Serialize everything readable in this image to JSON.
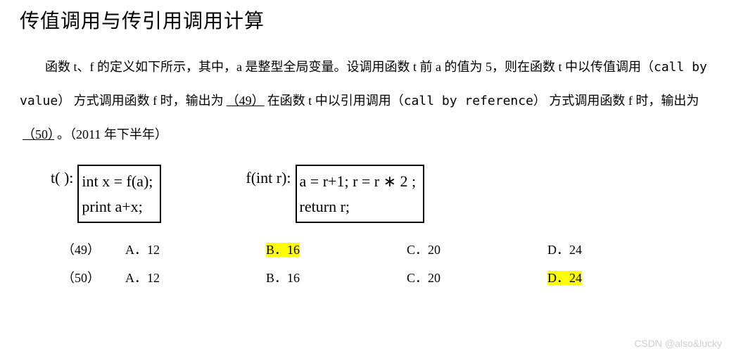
{
  "title": "传值调用与传引用调用计算",
  "paragraph_parts": {
    "p1": "函数 t、f 的定义如下所示，其中，a 是整型全局变量。设调用函数 t 前 a 的值为 5，则在函数 t 中以传值调用（",
    "cbv": "call by value",
    "p2": "） 方式调用函数 f 时，输出为",
    "blank1": "（49）",
    "p3": "在函数 t 中以引用调用（",
    "cbr": "call by reference",
    "p4": "） 方式调用函数 f 时，输出为",
    "blank2": "（50）",
    "p5": "。（2011 年下半年）"
  },
  "code": {
    "t_label": "t( ):",
    "t_line1": "int x = f(a);",
    "t_line2": "print a+x;",
    "f_label": "f(int r):",
    "f_line1": "a = r+1;    r = r ∗ 2 ;",
    "f_line2": "return r;"
  },
  "options": {
    "row49": {
      "num": "（49）",
      "a": "A．12",
      "b": "B．16",
      "c": "C．20",
      "d": "D．24",
      "highlight": "b"
    },
    "row50": {
      "num": "（50）",
      "a": "A．12",
      "b": "B．16",
      "c": "C．20",
      "d": "D．24",
      "highlight": "d"
    }
  },
  "highlight_color": "#ffff00",
  "watermark": "CSDN @also&lucky"
}
